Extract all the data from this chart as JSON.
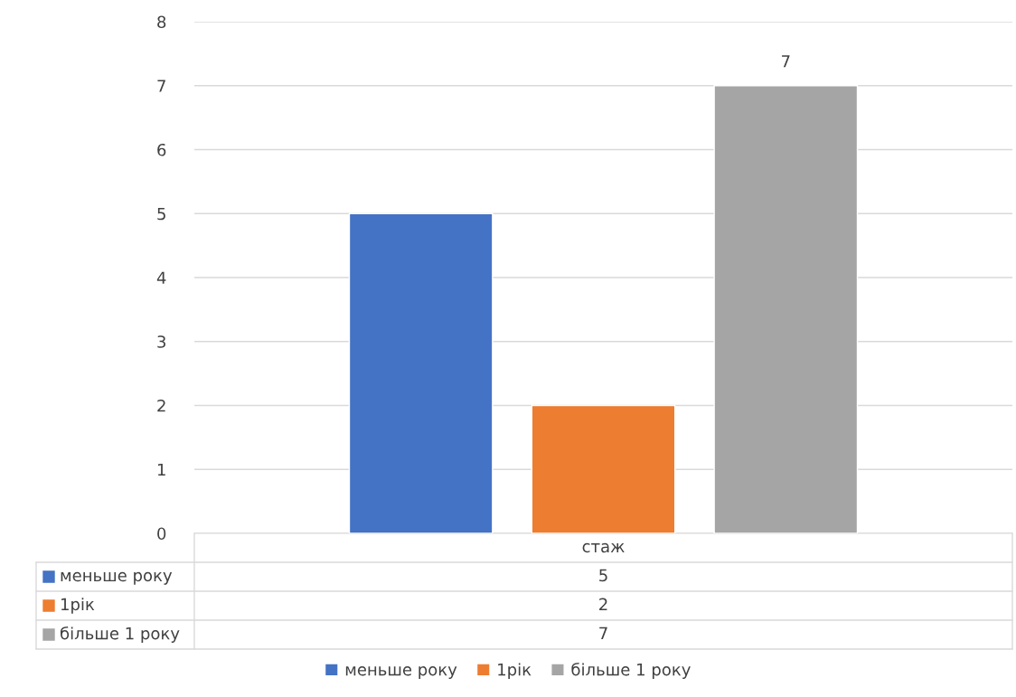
{
  "chart_data": {
    "type": "bar",
    "categories": [
      "стаж"
    ],
    "series": [
      {
        "name": "меньше року",
        "color": "#4472c4",
        "values": [
          5
        ]
      },
      {
        "name": "1рік",
        "color": "#ed7d31",
        "values": [
          2
        ]
      },
      {
        "name": "більше 1 року",
        "color": "#a5a5a5",
        "values": [
          7
        ],
        "value_labels": [
          "7"
        ]
      }
    ],
    "ylim": [
      0,
      8
    ],
    "yticks": [
      0,
      1,
      2,
      3,
      4,
      5,
      6,
      7,
      8
    ],
    "grid": "y",
    "legend": "bottom",
    "annotations": [
      "5",
      "2",
      "7"
    ]
  }
}
